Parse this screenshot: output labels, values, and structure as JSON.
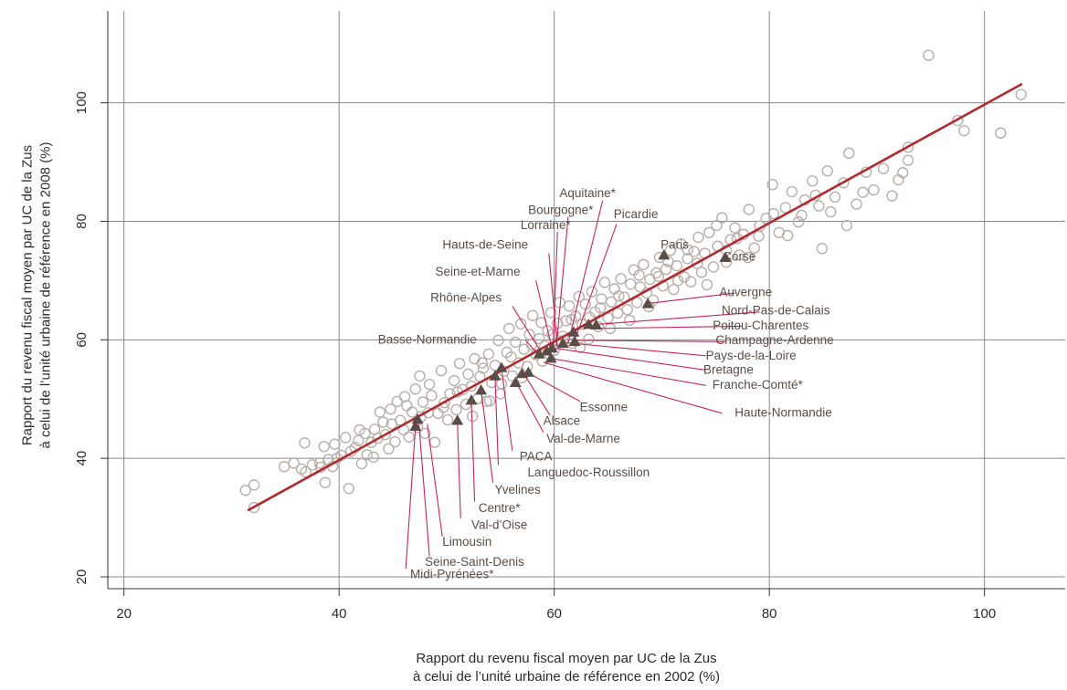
{
  "chart_data": {
    "type": "scatter",
    "xlabel": [
      "Rapport du revenu fiscal moyen par UC de la Zus",
      "à celui de l’unité urbaine de référence en 2002 (%)"
    ],
    "ylabel": [
      "Rapport du revenu fiscal moyen par UC de la Zus",
      "à celui de l’unité urbaine de référence en 2008 (%)"
    ],
    "xlim": [
      18.5,
      107.5
    ],
    "ylim": [
      18,
      115.5
    ],
    "xticks": [
      20,
      40,
      60,
      80,
      100
    ],
    "yticks": [
      20,
      40,
      60,
      80,
      100
    ],
    "grid": true,
    "regression_line": {
      "x": [
        31.5,
        103.5
      ],
      "y": [
        31.2,
        103.2
      ]
    },
    "colors": {
      "circles": "#b9afaa",
      "triangles": "#5a4d47",
      "line": "#b02a30",
      "leader": "#c8245c",
      "grid": "#888888",
      "label": "#5a4d47"
    },
    "series_circles": {
      "points": [
        [
          31.3,
          34.6
        ],
        [
          32.1,
          31.7
        ],
        [
          32.1,
          35.5
        ],
        [
          35.8,
          39.2
        ],
        [
          36.8,
          42.6
        ],
        [
          36.5,
          38.2
        ],
        [
          37.5,
          38.9
        ],
        [
          38.2,
          39.2
        ],
        [
          38.6,
          42.0
        ],
        [
          38.7,
          35.9
        ],
        [
          38.3,
          38.5
        ],
        [
          39.0,
          39.8
        ],
        [
          39.4,
          38.6
        ],
        [
          39.8,
          40.0
        ],
        [
          40.2,
          40.5
        ],
        [
          40.6,
          43.5
        ],
        [
          40.9,
          34.9
        ],
        [
          41.1,
          41.2
        ],
        [
          41.5,
          41.8
        ],
        [
          41.8,
          43.0
        ],
        [
          42.1,
          39.1
        ],
        [
          42.4,
          44.2
        ],
        [
          42.6,
          40.6
        ],
        [
          43.0,
          42.7
        ],
        [
          43.3,
          44.9
        ],
        [
          43.6,
          43.4
        ],
        [
          43.8,
          47.8
        ],
        [
          44.1,
          46.1
        ],
        [
          44.3,
          44.0
        ],
        [
          44.6,
          41.6
        ],
        [
          44.9,
          45.8
        ],
        [
          45.2,
          42.8
        ],
        [
          45.4,
          49.6
        ],
        [
          45.7,
          46.4
        ],
        [
          46.0,
          44.8
        ],
        [
          46.3,
          48.9
        ],
        [
          46.5,
          43.6
        ],
        [
          46.8,
          47.8
        ],
        [
          47.1,
          51.7
        ],
        [
          47.3,
          45.2
        ],
        [
          47.5,
          53.9
        ],
        [
          47.8,
          49.5
        ],
        [
          48.0,
          44.2
        ],
        [
          48.3,
          47.7
        ],
        [
          48.6,
          50.6
        ],
        [
          48.9,
          42.7
        ],
        [
          49.2,
          47.6
        ],
        [
          49.5,
          54.8
        ],
        [
          49.8,
          49.4
        ],
        [
          50.1,
          46.5
        ],
        [
          50.3,
          50.9
        ],
        [
          50.7,
          53.1
        ],
        [
          50.9,
          48.2
        ],
        [
          51.2,
          56.0
        ],
        [
          51.5,
          51.6
        ],
        [
          51.8,
          49.1
        ],
        [
          52.0,
          54.2
        ],
        [
          52.3,
          52.2
        ],
        [
          52.6,
          56.8
        ],
        [
          52.9,
          50.1
        ],
        [
          53.1,
          53.8
        ],
        [
          53.4,
          55.2
        ],
        [
          53.7,
          49.6
        ],
        [
          53.9,
          57.6
        ],
        [
          54.2,
          52.8
        ],
        [
          54.5,
          55.7
        ],
        [
          54.8,
          59.9
        ],
        [
          55.0,
          50.9
        ],
        [
          55.3,
          54.7
        ],
        [
          55.6,
          57.9
        ],
        [
          55.8,
          61.9
        ],
        [
          56.1,
          53.9
        ],
        [
          56.4,
          59.6
        ],
        [
          56.7,
          56.1
        ],
        [
          56.9,
          62.7
        ],
        [
          57.2,
          58.4
        ],
        [
          57.5,
          55.5
        ],
        [
          57.7,
          60.9
        ],
        [
          58.0,
          64.1
        ],
        [
          58.3,
          57.5
        ],
        [
          58.6,
          60.2
        ],
        [
          58.8,
          62.9
        ],
        [
          59.1,
          59.0
        ],
        [
          59.4,
          61.5
        ],
        [
          59.7,
          64.6
        ],
        [
          60.0,
          58.2
        ],
        [
          60.3,
          62.8
        ],
        [
          60.5,
          66.3
        ],
        [
          60.8,
          60.6
        ],
        [
          61.1,
          63.2
        ],
        [
          61.4,
          65.7
        ],
        [
          61.7,
          59.4
        ],
        [
          62.0,
          64.0
        ],
        [
          62.3,
          67.3
        ],
        [
          62.6,
          62.6
        ],
        [
          62.9,
          66.0
        ],
        [
          63.2,
          60.1
        ],
        [
          63.5,
          68.1
        ],
        [
          63.8,
          64.7
        ],
        [
          64.1,
          62.2
        ],
        [
          64.4,
          66.9
        ],
        [
          64.7,
          69.7
        ],
        [
          65.0,
          63.7
        ],
        [
          65.3,
          66.4
        ],
        [
          65.6,
          68.6
        ],
        [
          65.9,
          64.5
        ],
        [
          66.2,
          70.3
        ],
        [
          66.5,
          67.2
        ],
        [
          66.8,
          65.1
        ],
        [
          67.1,
          69.4
        ],
        [
          67.4,
          71.8
        ],
        [
          67.7,
          66.3
        ],
        [
          68.0,
          68.9
        ],
        [
          68.3,
          72.7
        ],
        [
          68.6,
          67.9
        ],
        [
          68.9,
          70.2
        ],
        [
          69.2,
          66.7
        ],
        [
          69.5,
          71.3
        ],
        [
          69.8,
          73.9
        ],
        [
          70.1,
          69.1
        ],
        [
          70.4,
          71.9
        ],
        [
          70.8,
          75.1
        ],
        [
          71.1,
          68.5
        ],
        [
          71.4,
          72.5
        ],
        [
          71.8,
          76.2
        ],
        [
          72.1,
          70.6
        ],
        [
          72.4,
          73.7
        ],
        [
          72.7,
          69.8
        ],
        [
          73.0,
          74.9
        ],
        [
          73.4,
          77.3
        ],
        [
          73.7,
          71.4
        ],
        [
          74.0,
          74.6
        ],
        [
          74.4,
          78.1
        ],
        [
          74.8,
          72.3
        ],
        [
          75.2,
          75.8
        ],
        [
          75.6,
          80.6
        ],
        [
          76.0,
          73.1
        ],
        [
          76.4,
          76.9
        ],
        [
          76.8,
          78.9
        ],
        [
          77.2,
          74.3
        ],
        [
          77.6,
          77.8
        ],
        [
          78.1,
          82.0
        ],
        [
          78.6,
          75.5
        ],
        [
          79.1,
          79.2
        ],
        [
          79.7,
          80.5
        ],
        [
          80.3,
          86.2
        ],
        [
          80.9,
          78.1
        ],
        [
          81.5,
          82.3
        ],
        [
          82.1,
          85.0
        ],
        [
          82.7,
          79.9
        ],
        [
          83.3,
          83.6
        ],
        [
          84.0,
          86.8
        ],
        [
          84.6,
          82.6
        ],
        [
          84.9,
          75.4
        ],
        [
          85.4,
          88.5
        ],
        [
          86.1,
          84.1
        ],
        [
          86.9,
          86.5
        ],
        [
          87.4,
          91.5
        ],
        [
          88.1,
          82.9
        ],
        [
          89.0,
          88.3
        ],
        [
          89.7,
          85.3
        ],
        [
          91.4,
          84.3
        ],
        [
          92.4,
          88.2
        ],
        [
          92.9,
          90.3
        ],
        [
          92.9,
          92.5
        ],
        [
          94.8,
          108.0
        ],
        [
          97.5,
          97.0
        ],
        [
          98.1,
          95.3
        ],
        [
          101.5,
          94.9
        ],
        [
          103.4,
          101.4
        ],
        [
          34.9,
          38.6
        ],
        [
          36.9,
          37.7
        ],
        [
          39.6,
          42.4
        ],
        [
          41.9,
          44.8
        ],
        [
          43.2,
          40.2
        ],
        [
          44.8,
          48.3
        ],
        [
          46.1,
          50.4
        ],
        [
          47.6,
          47.0
        ],
        [
          48.4,
          52.5
        ],
        [
          49.7,
          48.6
        ],
        [
          51.0,
          51.2
        ],
        [
          52.4,
          47.1
        ],
        [
          53.3,
          56.1
        ],
        [
          54.0,
          49.7
        ],
        [
          55.1,
          52.6
        ],
        [
          56.0,
          57.1
        ],
        [
          57.0,
          53.6
        ],
        [
          57.9,
          59.2
        ],
        [
          58.9,
          56.4
        ],
        [
          59.8,
          60.9
        ],
        [
          60.6,
          59.8
        ],
        [
          61.6,
          63.4
        ],
        [
          62.4,
          58.7
        ],
        [
          63.3,
          63.8
        ],
        [
          64.3,
          65.4
        ],
        [
          65.2,
          61.9
        ],
        [
          66.0,
          67.4
        ],
        [
          67.0,
          63.3
        ],
        [
          67.9,
          70.9
        ],
        [
          68.8,
          65.6
        ],
        [
          69.7,
          70.7
        ],
        [
          70.6,
          73.2
        ],
        [
          71.5,
          70.0
        ],
        [
          72.4,
          75.2
        ],
        [
          73.3,
          72.9
        ],
        [
          74.2,
          69.3
        ],
        [
          75.1,
          79.3
        ],
        [
          76.0,
          75.1
        ],
        [
          77.0,
          77.1
        ],
        [
          78.0,
          73.9
        ],
        [
          79.0,
          77.5
        ],
        [
          80.4,
          81.3
        ],
        [
          81.7,
          77.6
        ],
        [
          83.0,
          81.0
        ],
        [
          84.3,
          84.4
        ],
        [
          85.7,
          81.6
        ],
        [
          87.2,
          79.3
        ],
        [
          88.7,
          84.9
        ],
        [
          90.6,
          88.9
        ],
        [
          92.0,
          87.0
        ]
      ]
    },
    "series_triangles": {
      "points": [
        [
          70.2,
          74.3
        ],
        [
          75.9,
          73.9
        ],
        [
          68.7,
          66.1
        ],
        [
          63.9,
          62.5
        ],
        [
          63.2,
          62.6
        ],
        [
          61.8,
          61.3
        ],
        [
          61.9,
          59.7
        ],
        [
          60.8,
          59.4
        ],
        [
          59.8,
          58.6
        ],
        [
          59.3,
          58.1
        ],
        [
          58.6,
          57.6
        ],
        [
          59.7,
          56.9
        ],
        [
          57.6,
          54.5
        ],
        [
          57.0,
          54.3
        ],
        [
          56.4,
          52.8
        ],
        [
          55.1,
          55.3
        ],
        [
          54.5,
          53.9
        ],
        [
          53.2,
          51.5
        ],
        [
          52.3,
          49.8
        ],
        [
          51.0,
          46.4
        ],
        [
          47.3,
          46.6
        ],
        [
          47.1,
          45.4
        ]
      ]
    },
    "region_labels": [
      {
        "text": "Paris",
        "lx": 71.2,
        "ly": 75.9,
        "tx": 70.3,
        "ty": 74.4,
        "leader": false
      },
      {
        "text": "Corse",
        "lx": 77.2,
        "ly": 73.9,
        "tx": 75.9,
        "ty": 74.0,
        "leader": false
      },
      {
        "text": "Aquitaine*",
        "lx": 63.1,
        "ly": 84.6,
        "tx": 64.5,
        "ty": 83.5,
        "bx": 61.3,
        "by": 59.5,
        "leader": true
      },
      {
        "text": "Bourgogne*",
        "lx": 60.6,
        "ly": 81.8,
        "tx": 61.3,
        "ty": 80.8,
        "bx": 60.2,
        "by": 58.9,
        "leader": true
      },
      {
        "text": "Lorraine*",
        "lx": 59.2,
        "ly": 79.2,
        "tx": 60.3,
        "ty": 78.2,
        "bx": 59.9,
        "by": 58.4,
        "leader": true
      },
      {
        "text": "Picardie",
        "lx": 67.6,
        "ly": 81.1,
        "tx": 65.8,
        "ty": 79.5,
        "bx": 62.0,
        "by": 60.4,
        "leader": true
      },
      {
        "text": "Hauts-de-Seine",
        "lx": 53.6,
        "ly": 75.9,
        "tx": 59.5,
        "ty": 74.6,
        "bx": 60.3,
        "by": 59.0,
        "leader": true
      },
      {
        "text": "Seine-et-Marne",
        "lx": 52.9,
        "ly": 71.4,
        "tx": 58.3,
        "ty": 70.0,
        "bx": 59.8,
        "by": 58.5,
        "leader": true
      },
      {
        "text": "Rhône-Alpes",
        "lx": 51.8,
        "ly": 67.0,
        "tx": 56.1,
        "ty": 65.7,
        "bx": 58.8,
        "by": 57.9,
        "leader": true
      },
      {
        "text": "Basse-Normandie",
        "lx": 48.2,
        "ly": 59.9,
        "tx": 57.3,
        "ty": 60.0,
        "bx": 58.6,
        "by": 57.3,
        "leader": true
      },
      {
        "text": "Auvergne",
        "lx": 77.8,
        "ly": 67.9,
        "tx": 76.8,
        "ty": 67.9,
        "bx": 69.0,
        "by": 66.2,
        "leader": true
      },
      {
        "text": "Nord-Pas-de-Calais",
        "lx": 80.6,
        "ly": 64.8,
        "tx": 79.1,
        "ty": 64.7,
        "bx": 64.0,
        "by": 62.6,
        "leader": true
      },
      {
        "text": "Poitou-Charentes",
        "lx": 79.2,
        "ly": 62.3,
        "tx": 77.4,
        "ty": 62.3,
        "bx": 63.5,
        "by": 61.9,
        "leader": true
      },
      {
        "text": "Champagne-Ardenne",
        "lx": 80.5,
        "ly": 59.8,
        "tx": 75.9,
        "ty": 59.7,
        "bx": 62.1,
        "by": 59.9,
        "leader": true
      },
      {
        "text": "Pays-de-la-Loire",
        "lx": 78.3,
        "ly": 57.2,
        "tx": 74.1,
        "ty": 57.3,
        "bx": 61.1,
        "by": 59.5,
        "leader": true
      },
      {
        "text": "Bretagne",
        "lx": 76.2,
        "ly": 54.8,
        "tx": 74.1,
        "ty": 54.9,
        "bx": 60.0,
        "by": 58.6,
        "leader": true
      },
      {
        "text": "Franche-Comté*",
        "lx": 78.9,
        "ly": 52.3,
        "tx": 74.1,
        "ty": 52.3,
        "bx": 59.9,
        "by": 56.8,
        "leader": true
      },
      {
        "text": "Haute-Normandie",
        "lx": 81.3,
        "ly": 47.6,
        "tx": 75.6,
        "ty": 47.6,
        "bx": 59.0,
        "by": 56.2,
        "leader": true
      },
      {
        "text": "Essonne",
        "lx": 64.6,
        "ly": 48.5,
        "tx": 62.4,
        "ty": 49.6,
        "bx": 57.6,
        "by": 54.4,
        "leader": true
      },
      {
        "text": "Alsace",
        "lx": 60.7,
        "ly": 46.2,
        "tx": 59.6,
        "ty": 47.3,
        "bx": 57.2,
        "by": 54.2,
        "leader": true
      },
      {
        "text": "Val-de-Marne",
        "lx": 62.7,
        "ly": 43.2,
        "tx": 59.0,
        "ty": 44.4,
        "bx": 56.5,
        "by": 52.7,
        "leader": true
      },
      {
        "text": "PACA",
        "lx": 58.3,
        "ly": 40.2,
        "tx": 56.1,
        "ty": 41.3,
        "bx": 55.1,
        "by": 55.1,
        "leader": true
      },
      {
        "text": "Languedoc-Roussillon",
        "lx": 63.2,
        "ly": 37.5,
        "tx": 54.8,
        "ty": 38.9,
        "bx": 54.5,
        "by": 53.7,
        "leader": true
      },
      {
        "text": "Yvelines",
        "lx": 56.6,
        "ly": 34.6,
        "tx": 54.3,
        "ty": 35.9,
        "bx": 53.2,
        "by": 51.5,
        "leader": true
      },
      {
        "text": "Centre*",
        "lx": 54.9,
        "ly": 31.5,
        "tx": 52.6,
        "ty": 32.7,
        "bx": 52.3,
        "by": 49.7,
        "leader": true
      },
      {
        "text": "Val-d’Oise",
        "lx": 54.9,
        "ly": 28.6,
        "tx": 51.3,
        "ty": 29.9,
        "bx": 51.0,
        "by": 46.3,
        "leader": true
      },
      {
        "text": "Limousin",
        "lx": 51.9,
        "ly": 25.8,
        "tx": 49.6,
        "ty": 26.8,
        "bx": 48.2,
        "by": 45.8,
        "leader": true
      },
      {
        "text": "Seine-Saint-Denis",
        "lx": 52.6,
        "ly": 22.4,
        "tx": 48.4,
        "ty": 23.5,
        "bx": 47.4,
        "by": 46.4,
        "leader": true
      },
      {
        "text": "Midi-Pyrénées*",
        "lx": 50.5,
        "ly": 20.3,
        "tx": 46.2,
        "ty": 21.4,
        "bx": 47.1,
        "by": 45.2,
        "leader": true
      }
    ]
  }
}
